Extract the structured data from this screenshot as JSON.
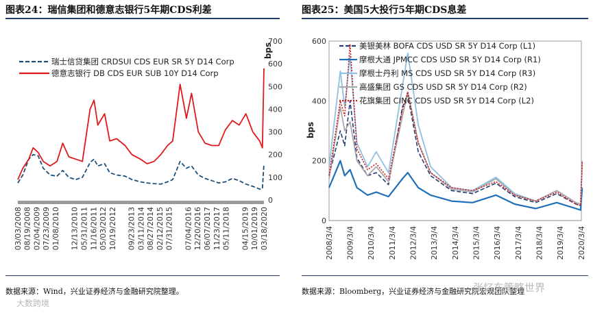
{
  "left_panel": {
    "title": "图表24：瑞信集团和德意志银行5年期CDS利差",
    "source": "数据来源：Wind，兴业证券经济与金融研究院整理。",
    "chart_data": {
      "type": "line",
      "title": "",
      "ylabel": "bps",
      "ylim": [
        0,
        700
      ],
      "yticks": [
        0,
        100,
        200,
        300,
        400,
        500,
        600,
        700
      ],
      "xlim": [
        "2008-03-03",
        "2020-03-18"
      ],
      "xticks": [
        "03/03/2008",
        "08/19/2008",
        "02/04/2009",
        "07/23/2009",
        "01/08/2010",
        "12/13/2010",
        "05/31/2011",
        "11/16/2011",
        "05/03/2012",
        "10/19/2012",
        "09/23/2013",
        "03/11/2014",
        "08/27/2014",
        "02/12/2015",
        "07/31/2015",
        "07/04/2016",
        "12/20/2016",
        "06/07/2017",
        "11/23/2017",
        "05/11/2018",
        "04/15/2019",
        "10/01/2019",
        "03/18/2020"
      ],
      "legend_position": "top-right",
      "series": [
        {
          "name": "瑞士信贷集团 CRDSUI CDS EUR SR 5Y D14 Corp",
          "color": "#1b4f7a",
          "dash": "dashed",
          "x": [
            "2008-03-03",
            "2008-06-01",
            "2008-09-15",
            "2008-12-01",
            "2009-03-01",
            "2009-06-01",
            "2009-10-01",
            "2010-02-01",
            "2010-05-15",
            "2010-09-01",
            "2011-01-01",
            "2011-05-01",
            "2011-09-15",
            "2011-11-25",
            "2012-02-01",
            "2012-06-01",
            "2012-09-01",
            "2013-01-01",
            "2013-06-01",
            "2013-10-01",
            "2014-03-01",
            "2014-07-01",
            "2014-11-01",
            "2015-03-01",
            "2015-07-01",
            "2015-10-01",
            "2016-02-10",
            "2016-06-01",
            "2016-09-01",
            "2017-01-01",
            "2017-05-01",
            "2017-09-01",
            "2018-01-01",
            "2018-05-01",
            "2018-09-01",
            "2019-01-01",
            "2019-05-01",
            "2019-09-01",
            "2020-01-01",
            "2020-02-20",
            "2020-03-18"
          ],
          "y": [
            75,
            110,
            180,
            200,
            195,
            140,
            110,
            105,
            130,
            100,
            90,
            100,
            165,
            180,
            150,
            160,
            120,
            110,
            105,
            90,
            80,
            75,
            72,
            70,
            80,
            90,
            170,
            140,
            150,
            110,
            95,
            85,
            75,
            80,
            95,
            85,
            70,
            60,
            48,
            50,
            160
          ]
        },
        {
          "name": "德意志银行 DB CDS EUR SUB 10Y D14 Corp",
          "color": "#e0181b",
          "dash": "solid",
          "x": [
            "2008-03-03",
            "2008-06-01",
            "2008-09-15",
            "2008-12-01",
            "2009-03-01",
            "2009-06-01",
            "2009-10-01",
            "2010-02-01",
            "2010-05-15",
            "2010-09-01",
            "2011-01-01",
            "2011-05-01",
            "2011-09-15",
            "2011-11-25",
            "2012-02-01",
            "2012-06-01",
            "2012-09-01",
            "2013-01-01",
            "2013-06-01",
            "2013-10-01",
            "2014-03-01",
            "2014-07-01",
            "2014-11-01",
            "2015-03-01",
            "2015-07-01",
            "2015-10-01",
            "2016-02-10",
            "2016-06-01",
            "2016-09-01",
            "2017-01-01",
            "2017-05-01",
            "2017-09-01",
            "2018-01-01",
            "2018-05-01",
            "2018-09-01",
            "2019-01-01",
            "2019-05-01",
            "2019-09-01",
            "2020-01-01",
            "2020-02-20",
            "2020-03-18"
          ],
          "y": [
            90,
            140,
            180,
            230,
            210,
            170,
            150,
            170,
            250,
            190,
            180,
            170,
            400,
            440,
            330,
            380,
            260,
            270,
            240,
            200,
            180,
            160,
            170,
            200,
            240,
            260,
            510,
            360,
            470,
            300,
            250,
            240,
            240,
            310,
            350,
            330,
            380,
            300,
            260,
            230,
            580
          ]
        }
      ]
    }
  },
  "right_panel": {
    "title": "图表25：美国5大投行5年期CDS息差",
    "source": "数据来源：Bloomberg，兴业证券经济与金融研究院宏观团队整理",
    "chart_data": {
      "type": "line",
      "title": "",
      "ylabel": "bps",
      "ylim": [
        0,
        600
      ],
      "yticks": [
        0,
        200,
        400,
        600
      ],
      "xlim": [
        "2008-03-04",
        "2020-03-04"
      ],
      "xticks": [
        "2008/3/4",
        "2009/3/4",
        "2010/3/4",
        "2011/3/4",
        "2012/3/4",
        "2013/3/4",
        "2014/3/4",
        "2015/3/4",
        "2016/3/4",
        "2017/3/4",
        "2018/3/4",
        "2019/3/4",
        "2020/3/4"
      ],
      "legend_position": "top-right",
      "series": [
        {
          "name": "美银美林 BOFA CDS USD SR 5Y D14 Corp (L1)",
          "color": "#1f3c74",
          "dash": "dashed",
          "x": [
            "2008-03-04",
            "2008-09-15",
            "2008-12-01",
            "2009-03-04",
            "2009-07-01",
            "2010-01-01",
            "2010-06-01",
            "2011-01-01",
            "2011-09-01",
            "2011-12-01",
            "2012-06-01",
            "2013-01-01",
            "2014-01-01",
            "2015-01-01",
            "2016-02-10",
            "2017-01-01",
            "2018-01-01",
            "2019-01-01",
            "2019-12-01",
            "2020-02-20",
            "2020-03-18"
          ],
          "y": [
            150,
            300,
            250,
            400,
            210,
            150,
            160,
            120,
            380,
            420,
            230,
            150,
            100,
            90,
            125,
            80,
            60,
            90,
            55,
            50,
            180
          ]
        },
        {
          "name": "摩根大通 JPMCC CDS USD SR 5Y D14 Corp (R1)",
          "color": "#1c6fb8",
          "dash": "solid",
          "x": [
            "2008-03-04",
            "2008-09-15",
            "2008-12-01",
            "2009-03-04",
            "2009-07-01",
            "2010-01-01",
            "2010-06-01",
            "2011-01-01",
            "2011-09-01",
            "2011-12-01",
            "2012-06-01",
            "2013-01-01",
            "2014-01-01",
            "2015-01-01",
            "2016-02-10",
            "2017-01-01",
            "2018-01-01",
            "2019-01-01",
            "2019-12-01",
            "2020-02-20",
            "2020-03-18"
          ],
          "y": [
            110,
            200,
            150,
            170,
            110,
            85,
            95,
            80,
            140,
            160,
            110,
            85,
            65,
            60,
            85,
            55,
            40,
            60,
            40,
            35,
            110
          ]
        },
        {
          "name": "摩根士丹利 MS CDS USD SR 5Y D14 Corp (R3)",
          "color": "#8fc0e2",
          "dash": "solid",
          "x": [
            "2008-03-04",
            "2008-09-15",
            "2008-12-01",
            "2009-03-04",
            "2009-07-01",
            "2010-01-01",
            "2010-06-01",
            "2011-01-01",
            "2011-09-01",
            "2011-12-01",
            "2012-06-01",
            "2013-01-01",
            "2014-01-01",
            "2015-01-01",
            "2016-02-10",
            "2017-01-01",
            "2018-01-01",
            "2019-01-01",
            "2019-12-01",
            "2020-02-20",
            "2020-03-18"
          ],
          "y": [
            180,
            500,
            380,
            550,
            260,
            180,
            230,
            160,
            450,
            560,
            320,
            180,
            110,
            100,
            145,
            90,
            65,
            100,
            60,
            55,
            200
          ]
        },
        {
          "name": "高盛集团 GS CDS USD SR 5Y D14 Corp (R2)",
          "color": "#a9a9a9",
          "dash": "solid",
          "x": [
            "2008-03-04",
            "2008-09-15",
            "2008-12-01",
            "2009-03-04",
            "2009-07-01",
            "2010-01-01",
            "2010-06-01",
            "2011-01-01",
            "2011-09-01",
            "2011-12-01",
            "2012-06-01",
            "2013-01-01",
            "2014-01-01",
            "2015-01-01",
            "2016-02-10",
            "2017-01-01",
            "2018-01-01",
            "2019-01-01",
            "2019-12-01",
            "2020-02-20",
            "2020-03-18"
          ],
          "y": [
            140,
            380,
            300,
            330,
            200,
            150,
            180,
            130,
            350,
            430,
            260,
            160,
            105,
            95,
            140,
            85,
            65,
            100,
            60,
            55,
            190
          ]
        },
        {
          "name": "花旗集团 CINC CDS USD SR 5Y D14 Corp (L2)",
          "color": "#d0141a",
          "dash": "dotted",
          "x": [
            "2008-03-04",
            "2008-09-15",
            "2008-12-01",
            "2009-03-04",
            "2009-07-01",
            "2010-01-01",
            "2010-06-01",
            "2011-01-01",
            "2011-09-01",
            "2011-12-01",
            "2012-06-01",
            "2013-01-01",
            "2014-01-01",
            "2015-01-01",
            "2016-02-10",
            "2017-01-01",
            "2018-01-01",
            "2019-01-01",
            "2019-12-01",
            "2020-02-20",
            "2020-03-18"
          ],
          "y": [
            150,
            400,
            350,
            590,
            240,
            170,
            190,
            140,
            370,
            430,
            260,
            160,
            110,
            100,
            130,
            85,
            65,
            95,
            55,
            50,
            200
          ]
        }
      ]
    }
  },
  "watermarks": {
    "right": "张忆东策略世界",
    "left": "大数跨境"
  }
}
